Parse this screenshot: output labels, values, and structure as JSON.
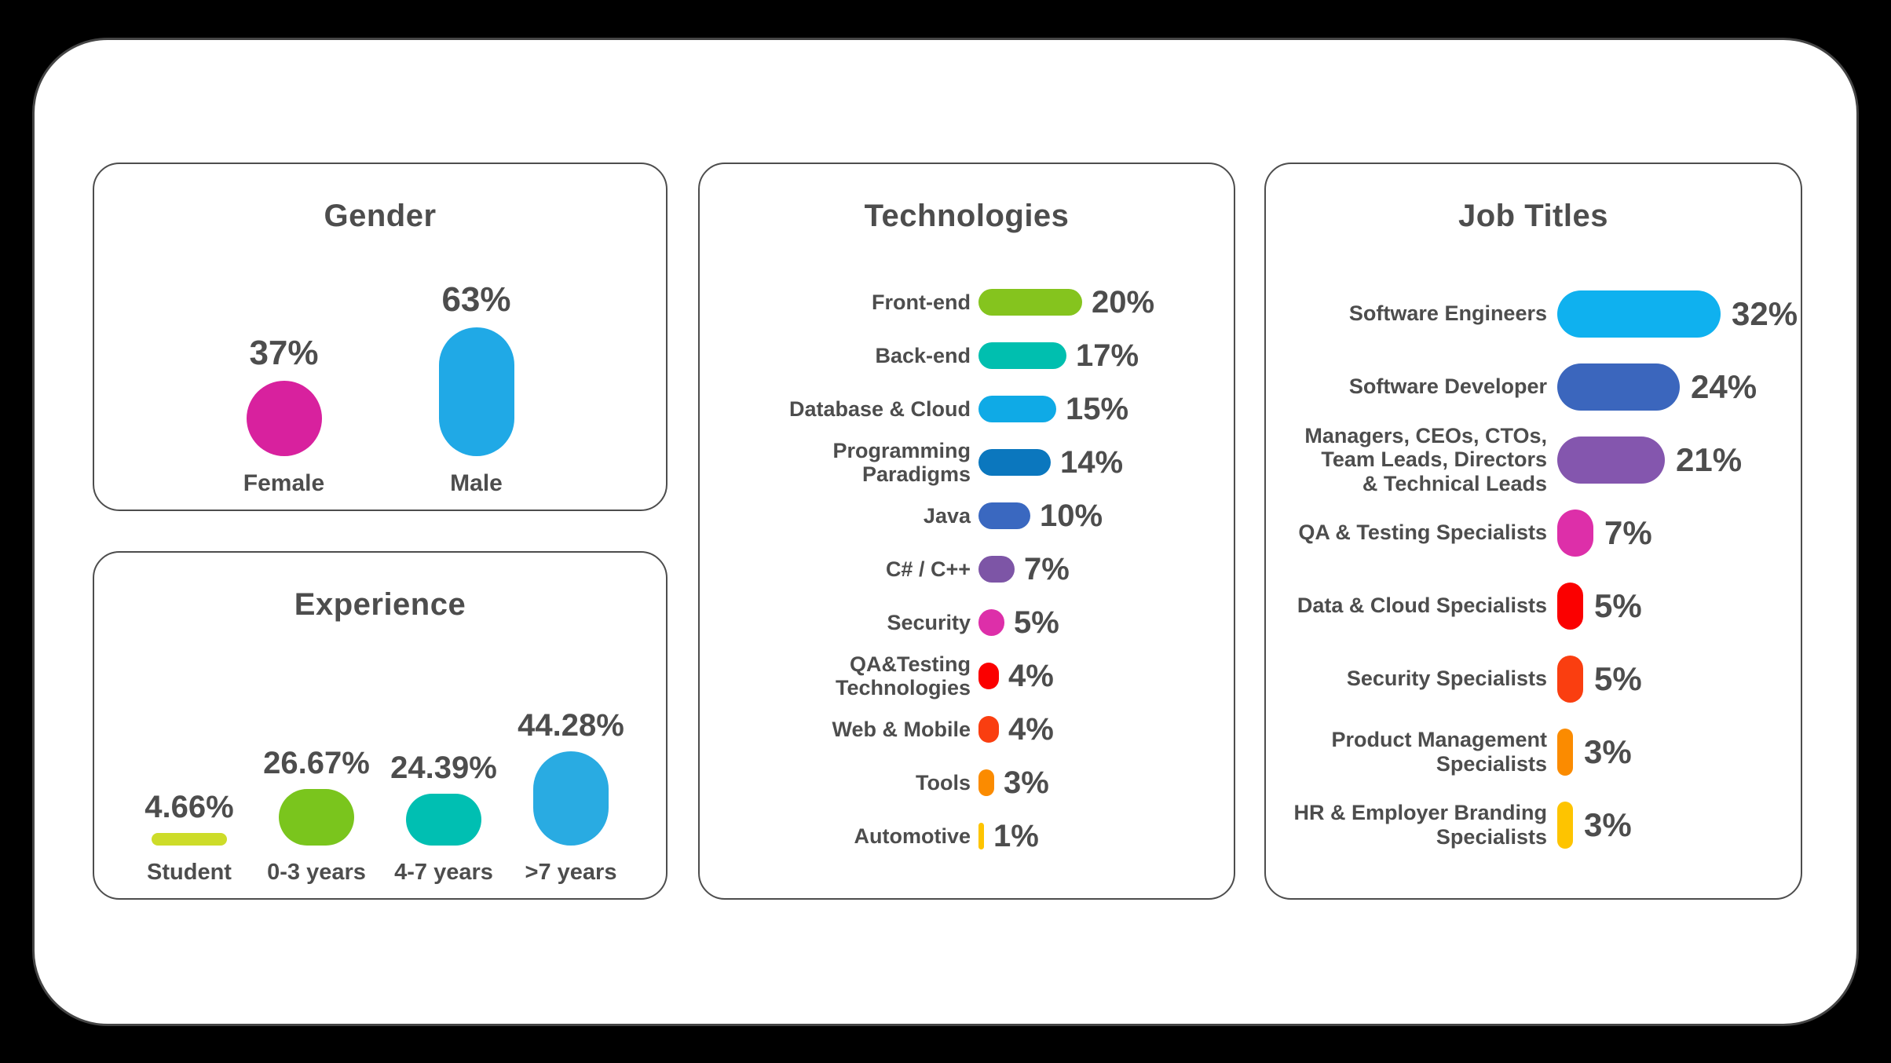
{
  "colors": {
    "background": "#000000",
    "card": "#FFFFFF",
    "text": "#4D4D4D",
    "panel_border": "#4D4D4D"
  },
  "chart_data": [
    {
      "id": "gender",
      "type": "bar",
      "orientation": "vertical",
      "title": "Gender",
      "unit": "%",
      "points": [
        {
          "label": "Female",
          "value": 37,
          "color": "#D8219E"
        },
        {
          "label": "Male",
          "value": 63,
          "color": "#20A9E6"
        }
      ]
    },
    {
      "id": "experience",
      "type": "bar",
      "orientation": "vertical",
      "title": "Experience",
      "unit": "%",
      "points": [
        {
          "label": "Student",
          "value": 4.66,
          "color": "#CDDC29"
        },
        {
          "label": "0-3 years",
          "value": 26.67,
          "color": "#7AC51D"
        },
        {
          "label": "4-7 years",
          "value": 24.39,
          "color": "#00BFB2"
        },
        {
          "label": ">7 years",
          "value": 44.28,
          "color": "#29ABE2"
        }
      ]
    },
    {
      "id": "technologies",
      "type": "bar",
      "orientation": "horizontal",
      "title": "Technologies",
      "unit": "%",
      "points": [
        {
          "label": "Front-end",
          "value": 20,
          "color": "#85C41E"
        },
        {
          "label": "Back-end",
          "value": 17,
          "color": "#00BFAF"
        },
        {
          "label": "Database & Cloud",
          "value": 15,
          "color": "#0FAAE6"
        },
        {
          "label": "Programming\nParadigms",
          "value": 14,
          "color": "#0B77BE"
        },
        {
          "label": "Java",
          "value": 10,
          "color": "#3A68C0"
        },
        {
          "label": "C# / C++",
          "value": 7,
          "color": "#7D55A6"
        },
        {
          "label": "Security",
          "value": 5,
          "color": "#DD2FA9"
        },
        {
          "label": "QA&Testing\nTechnologies",
          "value": 4,
          "color": "#FB0000"
        },
        {
          "label": "Web & Mobile",
          "value": 4,
          "color": "#FA3E10"
        },
        {
          "label": "Tools",
          "value": 3,
          "color": "#FB8B00"
        },
        {
          "label": "Automotive",
          "value": 1,
          "color": "#FEC400"
        }
      ]
    },
    {
      "id": "job_titles",
      "type": "bar",
      "orientation": "horizontal",
      "title": "Job Titles",
      "unit": "%",
      "points": [
        {
          "label": "Software Engineers",
          "value": 32,
          "color": "#0FB1EF"
        },
        {
          "label": "Software Developer",
          "value": 24,
          "color": "#3B66BD"
        },
        {
          "label": "Managers, CEOs, CTOs,\nTeam Leads, Directors\n& Technical Leads",
          "value": 21,
          "color": "#8456AE"
        },
        {
          "label": "QA & Testing Specialists",
          "value": 7,
          "color": "#DD2FA9"
        },
        {
          "label": "Data & Cloud Specialists",
          "value": 5,
          "color": "#FB0000"
        },
        {
          "label": "Security Specialists",
          "value": 5,
          "color": "#FA3E10"
        },
        {
          "label": "Product Management\nSpecialists",
          "value": 3,
          "color": "#FB8B00"
        },
        {
          "label": "HR & Employer Branding\nSpecialists",
          "value": 3,
          "color": "#FEC400"
        }
      ]
    }
  ]
}
